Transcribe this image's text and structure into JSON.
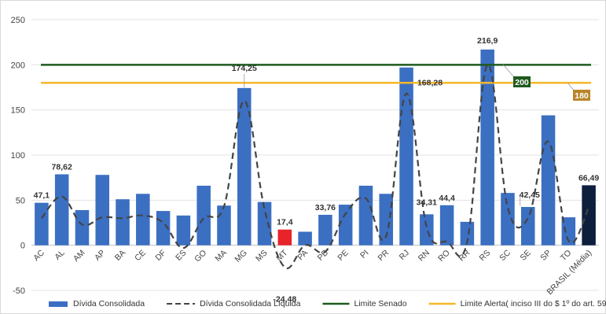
{
  "chart_data": {
    "type": "bar",
    "title": "",
    "xlabel": "",
    "ylabel": "",
    "ylim": [
      -50,
      250
    ],
    "yticks": [
      -50,
      0,
      50,
      100,
      150,
      200,
      250
    ],
    "grid": "horizontal",
    "legend_position": "bottom",
    "categories": [
      "AC",
      "AL",
      "AM",
      "AP",
      "BA",
      "CE",
      "DF",
      "ES",
      "GO",
      "MA",
      "MG",
      "MS",
      "MT",
      "PA",
      "PB",
      "PE",
      "PI",
      "PR",
      "RJ",
      "RN",
      "RO",
      "RR",
      "RS",
      "SC",
      "SE",
      "SP",
      "TO",
      "BRASIL (Média)"
    ],
    "series": [
      {
        "name": "Dívida Consolidada",
        "kind": "bar",
        "color": "#3b6fc2",
        "values": [
          47.1,
          78.62,
          39,
          78,
          51,
          57,
          38,
          33,
          66,
          44,
          174.25,
          48,
          17.4,
          15,
          33.76,
          45,
          66,
          57,
          197,
          34.31,
          44.4,
          26,
          216.9,
          58,
          42.45,
          144,
          31,
          66.49
        ],
        "highlight": {
          "MT": "#e8232a",
          "BRASIL (Média)": "#0d1f3c"
        }
      },
      {
        "name": "Dívida Consolidada Líquida",
        "kind": "dashed-line",
        "color": "#444444",
        "values": [
          30,
          54,
          23,
          31,
          30,
          33,
          25,
          -3,
          30,
          43,
          160,
          40,
          -24.48,
          0,
          -7,
          35,
          52,
          10,
          168.28,
          20,
          4,
          4,
          200,
          42,
          30,
          115,
          5,
          42
        ]
      },
      {
        "name": "Limite Senado",
        "kind": "reference",
        "color": "#1e5a1e",
        "value": 200
      },
      {
        "name": "Limite Alerta( inciso III do $ 1º do art. 59 da LRF)",
        "kind": "reference",
        "color": "#f5b829",
        "value": 180
      }
    ],
    "data_labels": [
      {
        "category": "AC",
        "text": "47,1"
      },
      {
        "category": "AL",
        "text": "78,62"
      },
      {
        "category": "MG",
        "text": "174,25"
      },
      {
        "category": "MT",
        "text": "17,4"
      },
      {
        "category": "MT",
        "text": "-24,48",
        "series": "Dívida Consolidada Líquida"
      },
      {
        "category": "PB",
        "text": "33,76"
      },
      {
        "category": "RJ",
        "text": "168,28",
        "series": "Dívida Consolidada Líquida"
      },
      {
        "category": "RN",
        "text": "34,31"
      },
      {
        "category": "RO",
        "text": "44,4"
      },
      {
        "category": "RS",
        "text": "216,9"
      },
      {
        "category": "SE",
        "text": "42,45"
      },
      {
        "category": "BRASIL (Média)",
        "text": "66,49"
      }
    ],
    "reference_labels": [
      {
        "text": "200",
        "value": 200,
        "color": "#1e5a1e"
      },
      {
        "text": "180",
        "value": 180,
        "color": "#b8862a"
      }
    ]
  }
}
